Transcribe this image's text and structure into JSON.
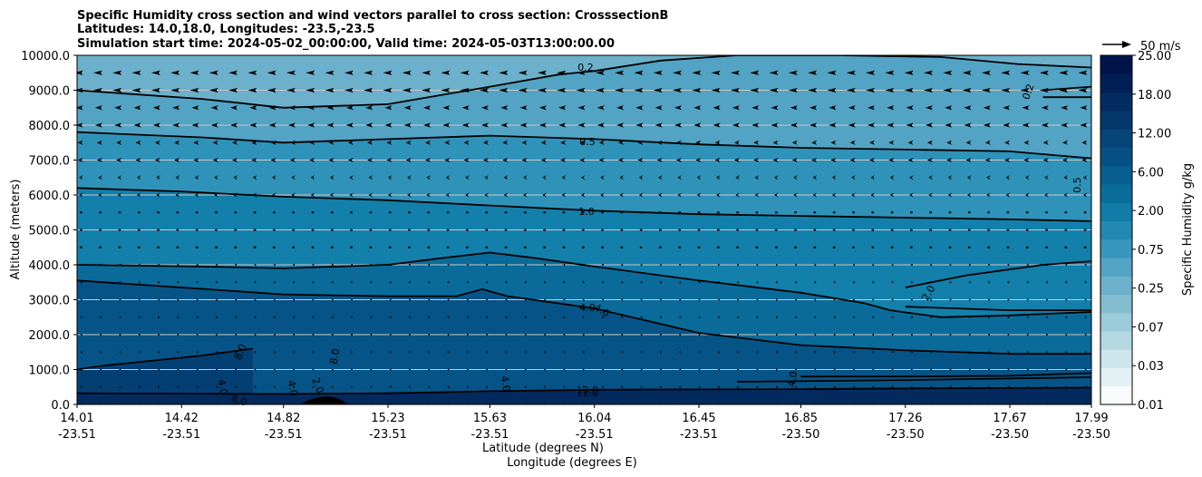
{
  "chart_data": {
    "type": "contour",
    "title_lines": [
      "Specific Humidity cross section and wind vectors parallel to cross section: CrosssectionB",
      "Latitudes: 14.0,18.0, Longitudes: -23.5,-23.5",
      "Simulation start time: 2024-05-02_00:00:00, Valid time: 2024-05-03T13:00:00.00"
    ],
    "ylabel": "Altitude (meters)",
    "xlabel_lat": "Latitude (degrees N)",
    "xlabel_lon": "Longitude (degrees E)",
    "ylim": [
      0,
      10000
    ],
    "y_ticks": [
      "0.0",
      "1000.0",
      "2000.0",
      "3000.0",
      "4000.0",
      "5000.0",
      "6000.0",
      "7000.0",
      "8000.0",
      "9000.0",
      "10000.0"
    ],
    "x_ticks": [
      {
        "lat": "14.01",
        "lon": "-23.51"
      },
      {
        "lat": "14.42",
        "lon": "-23.51"
      },
      {
        "lat": "14.82",
        "lon": "-23.51"
      },
      {
        "lat": "15.23",
        "lon": "-23.51"
      },
      {
        "lat": "15.63",
        "lon": "-23.51"
      },
      {
        "lat": "16.04",
        "lon": "-23.51"
      },
      {
        "lat": "16.45",
        "lon": "-23.51"
      },
      {
        "lat": "16.85",
        "lon": "-23.50"
      },
      {
        "lat": "17.26",
        "lon": "-23.50"
      },
      {
        "lat": "17.67",
        "lon": "-23.50"
      },
      {
        "lat": "17.99",
        "lon": "-23.50"
      }
    ],
    "colorbar": {
      "label": "Specific Humidity g/kg",
      "tick_labels": [
        "0.01",
        "0.03",
        "0.07",
        "0.25",
        "0.75",
        "2.00",
        "6.00",
        "12.00",
        "18.00",
        "25.00"
      ],
      "colors": [
        "#f7fbfc",
        "#e4f1f4",
        "#cde6ec",
        "#b4d9e3",
        "#9ccbd9",
        "#84bcd0",
        "#6cb0cb",
        "#52a3c4",
        "#3996bc",
        "#2389b2",
        "#127ba7",
        "#0a6c9b",
        "#075e8f",
        "#065183",
        "#054577",
        "#04386b",
        "#032c60",
        "#021f55",
        "#01144a"
      ]
    },
    "wind_key": {
      "label": "50 m/s",
      "value": 50
    },
    "contours": [
      {
        "level": "0.2",
        "points": [
          [
            14.01,
            9000
          ],
          [
            14.5,
            8750
          ],
          [
            14.82,
            8500
          ],
          [
            15.23,
            8600
          ],
          [
            15.63,
            9100
          ],
          [
            15.9,
            9450
          ],
          [
            16.04,
            9550
          ],
          [
            16.3,
            9850
          ],
          [
            16.6,
            10000
          ],
          [
            17.0,
            10000
          ],
          [
            17.4,
            9950
          ],
          [
            17.7,
            9750
          ],
          [
            17.99,
            9650
          ]
        ]
      },
      {
        "level": "0.5",
        "points": [
          [
            14.01,
            7800
          ],
          [
            14.5,
            7650
          ],
          [
            14.82,
            7500
          ],
          [
            15.23,
            7600
          ],
          [
            15.63,
            7700
          ],
          [
            16.04,
            7600
          ],
          [
            16.45,
            7450
          ],
          [
            16.85,
            7350
          ],
          [
            17.26,
            7300
          ],
          [
            17.67,
            7250
          ],
          [
            17.99,
            7050
          ]
        ]
      },
      {
        "level": "1.0",
        "points": [
          [
            14.01,
            6200
          ],
          [
            14.42,
            6100
          ],
          [
            14.82,
            5950
          ],
          [
            15.23,
            5850
          ],
          [
            15.63,
            5700
          ],
          [
            16.04,
            5550
          ],
          [
            16.45,
            5450
          ],
          [
            16.85,
            5400
          ],
          [
            17.26,
            5350
          ],
          [
            17.67,
            5300
          ],
          [
            17.99,
            5250
          ]
        ]
      },
      {
        "level": "2.0",
        "points": [
          [
            14.01,
            4000
          ],
          [
            14.5,
            3950
          ],
          [
            14.82,
            3900
          ],
          [
            15.23,
            4000
          ],
          [
            15.45,
            4200
          ],
          [
            15.63,
            4350
          ],
          [
            15.8,
            4200
          ],
          [
            16.04,
            3950
          ],
          [
            16.45,
            3550
          ],
          [
            16.85,
            3200
          ],
          [
            17.1,
            2900
          ],
          [
            17.2,
            2700
          ],
          [
            17.4,
            2500
          ],
          [
            17.67,
            2550
          ],
          [
            17.99,
            2650
          ]
        ]
      },
      {
        "level": "4.0",
        "points": [
          [
            14.01,
            3550
          ],
          [
            14.42,
            3350
          ],
          [
            14.82,
            3150
          ],
          [
            15.23,
            3100
          ],
          [
            15.5,
            3100
          ],
          [
            15.6,
            3300
          ],
          [
            15.7,
            3100
          ],
          [
            16.04,
            2750
          ],
          [
            16.45,
            2050
          ],
          [
            16.85,
            1700
          ],
          [
            17.26,
            1550
          ],
          [
            17.67,
            1450
          ],
          [
            17.99,
            1450
          ]
        ]
      },
      {
        "level": "8.0",
        "points": [
          [
            14.01,
            1000
          ],
          [
            14.1,
            1100
          ],
          [
            14.3,
            1250
          ],
          [
            14.5,
            1400
          ],
          [
            14.7,
            1600
          ]
        ]
      },
      {
        "level": "12.0",
        "points": [
          [
            14.01,
            320
          ],
          [
            14.42,
            310
          ],
          [
            14.82,
            300
          ],
          [
            15.23,
            320
          ],
          [
            15.63,
            380
          ],
          [
            16.04,
            420
          ],
          [
            16.45,
            430
          ],
          [
            16.85,
            440
          ],
          [
            17.26,
            460
          ],
          [
            17.67,
            470
          ],
          [
            17.99,
            480
          ]
        ]
      }
    ],
    "contour_labels": [
      "0.2",
      "0.2",
      "0.5",
      "0.5",
      "1.0",
      "2.0",
      "4.0",
      "4.0",
      "8.0",
      "8.0",
      "4.0",
      "4.0",
      "8.0",
      "12.0",
      "4.0",
      "12.0",
      "4.0",
      "2.0"
    ]
  }
}
